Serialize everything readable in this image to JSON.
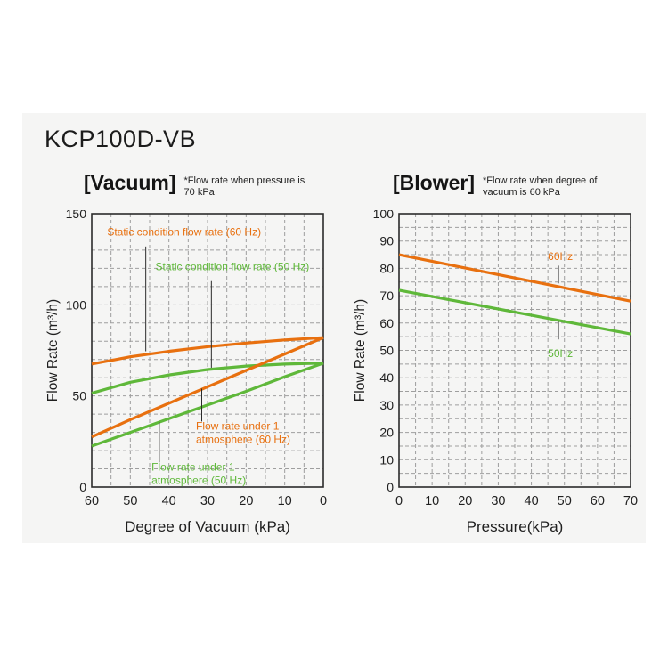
{
  "page": {
    "title": "KCP100D-VB",
    "background": "#ffffff",
    "panel_background": "#f5f5f4"
  },
  "colors": {
    "orange": "#e8700f",
    "green": "#5fb83a",
    "grid": "#9e9e9e",
    "axis": "#2b2b2b",
    "text": "#1f1f1f"
  },
  "chart_data": [
    {
      "id": "vacuum",
      "type": "line",
      "title": "[Vacuum]",
      "note_lines": [
        "*Flow rate when pressure is",
        "70 kPa"
      ],
      "xlabel": "Degree of Vacuum (kPa)",
      "ylabel": "Flow Rate (m³/h)",
      "xlim": [
        60,
        0
      ],
      "ylim": [
        0,
        150
      ],
      "x_ticks": [
        60,
        50,
        40,
        30,
        20,
        10,
        0
      ],
      "y_ticks": [
        0,
        50,
        100,
        150
      ],
      "x_minor_step": 5,
      "y_minor_step": 10,
      "grid": "dashed",
      "legend_position": "none",
      "series": [
        {
          "name": "Static condition flow rate (60 Hz)",
          "color_key": "orange",
          "x": [
            60,
            50,
            40,
            30,
            20,
            10,
            0
          ],
          "y": [
            67.5,
            71.5,
            74.5,
            77,
            79,
            80.7,
            82
          ]
        },
        {
          "name": "Static condition flow rate (50 Hz)",
          "color_key": "green",
          "x": [
            60,
            50,
            40,
            30,
            20,
            10,
            0
          ],
          "y": [
            51.5,
            57.5,
            61.5,
            64.5,
            66.4,
            67.5,
            68
          ]
        },
        {
          "name": "Flow rate under 1 atmosphere (60 Hz)",
          "color_key": "orange",
          "x": [
            60,
            50,
            40,
            30,
            20,
            10,
            0
          ],
          "y": [
            27.5,
            37,
            46,
            55,
            64,
            73,
            82
          ]
        },
        {
          "name": "Flow rate under 1 atmosphere (50 Hz)",
          "color_key": "green",
          "x": [
            60,
            50,
            40,
            30,
            20,
            10,
            0
          ],
          "y": [
            22.5,
            30,
            37.5,
            45,
            52.5,
            60.5,
            68
          ]
        }
      ],
      "annotations": [
        {
          "lines": [
            "Static condition flow rate (60 Hz)"
          ],
          "color_key": "orange",
          "x": 56,
          "y": 138,
          "anchor": "start",
          "leader": {
            "x": 46,
            "y1": 132,
            "y2": 74.5
          }
        },
        {
          "lines": [
            "Static condition flow rate (50 Hz)"
          ],
          "color_key": "green",
          "x": 43.5,
          "y": 119,
          "anchor": "start",
          "leader": {
            "x": 29,
            "y1": 113,
            "y2": 65.5
          }
        },
        {
          "lines": [
            "Flow rate under 1",
            "atmosphere (60 Hz)"
          ],
          "color_key": "orange",
          "x": 33,
          "y": 31.5,
          "anchor": "start",
          "leader": {
            "x": 31.5,
            "y1": 54,
            "y2": 36
          }
        },
        {
          "lines": [
            "Flow rate under 1",
            "atmosphere (50 Hz)"
          ],
          "color_key": "green",
          "x": 44.5,
          "y": 9,
          "anchor": "start",
          "leader": {
            "x": 42.5,
            "y1": 35.5,
            "y2": 13.5
          }
        }
      ]
    },
    {
      "id": "blower",
      "type": "line",
      "title": "[Blower]",
      "note_lines": [
        "*Flow rate when degree of",
        "vacuum is 60 kPa"
      ],
      "xlabel": "Pressure(kPa)",
      "ylabel": "Flow Rate (m³/h)",
      "xlim": [
        0,
        70
      ],
      "ylim": [
        0,
        100
      ],
      "x_ticks": [
        0,
        10,
        20,
        30,
        40,
        50,
        60,
        70
      ],
      "y_ticks": [
        0,
        10,
        20,
        30,
        40,
        50,
        60,
        70,
        80,
        90,
        100
      ],
      "x_minor_step": 5,
      "y_minor_step": 5,
      "grid": "dashed",
      "legend_position": "none",
      "series": [
        {
          "name": "60Hz",
          "color_key": "orange",
          "x": [
            0,
            70
          ],
          "y": [
            85,
            68
          ]
        },
        {
          "name": "50Hz",
          "color_key": "green",
          "x": [
            0,
            70
          ],
          "y": [
            72,
            56
          ]
        }
      ],
      "annotations": [
        {
          "lines": [
            "60Hz"
          ],
          "color_key": "orange",
          "x": 45,
          "y": 83,
          "anchor": "start",
          "leader": {
            "x": 48.2,
            "y1": 81,
            "y2": 74.5
          }
        },
        {
          "lines": [
            "50Hz"
          ],
          "color_key": "green",
          "x": 45,
          "y": 47.5,
          "anchor": "start",
          "leader": {
            "x": 48.2,
            "y1": 60.5,
            "y2": 54
          }
        }
      ]
    }
  ]
}
